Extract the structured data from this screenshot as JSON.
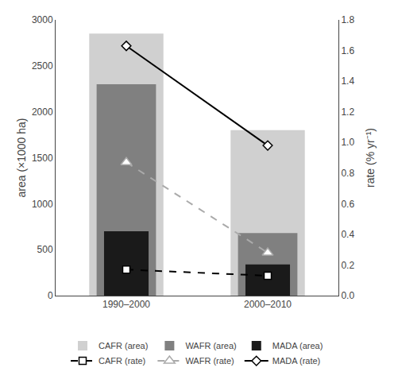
{
  "chart_data": {
    "type": "bar",
    "categories": [
      "1990–2000",
      "2000–2010"
    ],
    "series": [
      {
        "name": "CAFR (area)",
        "color": "#d0d0d0",
        "values": [
          2850,
          1800
        ]
      },
      {
        "name": "WAFR (area)",
        "color": "#808080",
        "values": [
          2300,
          680
        ]
      },
      {
        "name": "MADA (area)",
        "color": "#1a1a1a",
        "values": [
          700,
          340
        ]
      },
      {
        "name": "CAFR (rate)",
        "type": "line",
        "axis": "y2",
        "color": "#000000",
        "line_style": "dashed",
        "marker": "square",
        "values": [
          0.17,
          0.13
        ]
      },
      {
        "name": "WAFR (rate)",
        "type": "line",
        "axis": "y2",
        "color": "#aaaaaa",
        "line_style": "dashed",
        "marker": "triangle",
        "values": [
          0.87,
          0.28
        ]
      },
      {
        "name": "MADA (rate)",
        "type": "line",
        "axis": "y2",
        "color": "#000000",
        "line_style": "solid",
        "marker": "diamond",
        "values": [
          1.63,
          0.98
        ]
      }
    ],
    "ylabel": "area (×1000 ha)",
    "y2label": "rate (% yr⁻¹)",
    "ylim": [
      0,
      3000
    ],
    "yticks": [
      0,
      500,
      1000,
      1500,
      2000,
      2500,
      3000
    ],
    "y2lim": [
      0,
      1.8
    ],
    "y2ticks": [
      {
        "value": 0,
        "label": "0.0"
      },
      0.2,
      0.4,
      0.6,
      0.8,
      {
        "value": 1,
        "label": "1.0"
      },
      1.2,
      1.4,
      1.6,
      1.8
    ],
    "grid": false,
    "legend": "bottom"
  }
}
